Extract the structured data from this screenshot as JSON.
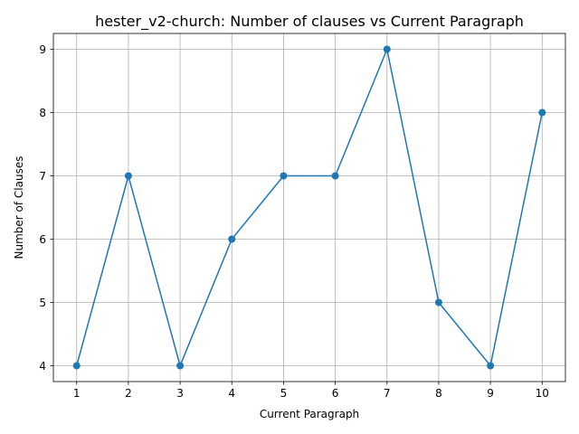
{
  "chart_data": {
    "type": "line",
    "title": "hester_v2-church: Number of clauses vs Current Paragraph",
    "xlabel": "Current Paragraph",
    "ylabel": "Number of Clauses",
    "x": [
      1,
      2,
      3,
      4,
      5,
      6,
      7,
      8,
      9,
      10
    ],
    "series": [
      {
        "name": "Number of Clauses",
        "values": [
          4,
          7,
          4,
          6,
          7,
          7,
          9,
          5,
          4,
          8
        ],
        "color": "#1f77b4",
        "marker": "circle"
      }
    ],
    "xlim": [
      0.55,
      10.45
    ],
    "ylim": [
      3.75,
      9.25
    ],
    "xticks": [
      1,
      2,
      3,
      4,
      5,
      6,
      7,
      8,
      9,
      10
    ],
    "yticks": [
      4,
      5,
      6,
      7,
      8,
      9
    ],
    "grid": true,
    "legend": "none"
  }
}
